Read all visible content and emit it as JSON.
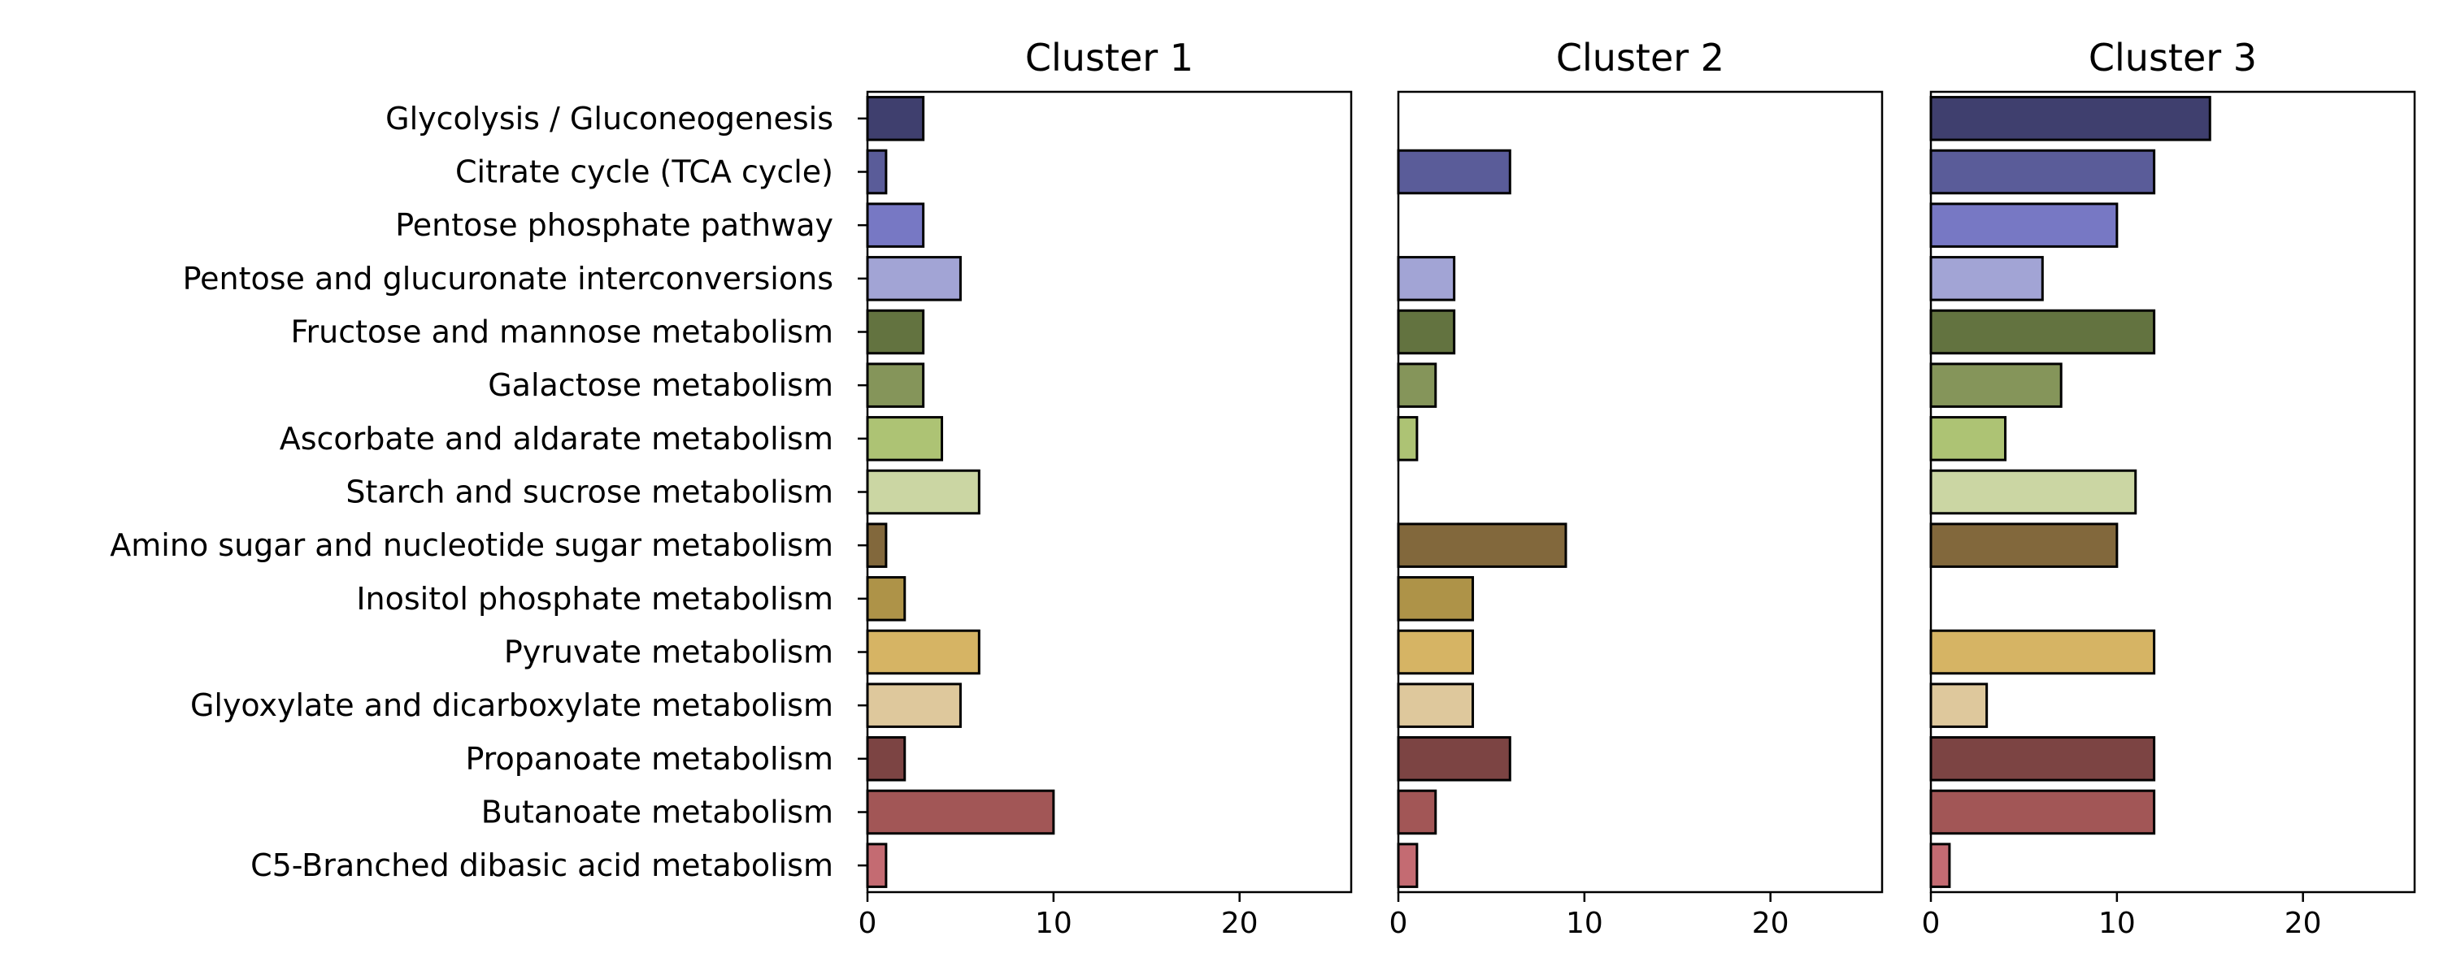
{
  "chart_data": {
    "type": "bar",
    "orientation": "horizontal",
    "categories": [
      "Glycolysis / Gluconeogenesis",
      "Citrate cycle (TCA cycle)",
      "Pentose phosphate pathway",
      "Pentose and glucuronate interconversions",
      "Fructose and mannose metabolism",
      "Galactose metabolism",
      "Ascorbate and aldarate metabolism",
      "Starch and sucrose metabolism",
      "Amino sugar and nucleotide sugar metabolism",
      "Inositol phosphate metabolism",
      "Pyruvate metabolism",
      "Glyoxylate and dicarboxylate metabolism",
      "Propanoate metabolism",
      "Butanoate metabolism",
      "C5-Branched dibasic acid metabolism"
    ],
    "colors": [
      "#3f3f6e",
      "#5a5c99",
      "#7778c4",
      "#a2a4d5",
      "#637340",
      "#85955a",
      "#adc374",
      "#cbd6a3",
      "#82683c",
      "#ae9348",
      "#d6b464",
      "#dec89c",
      "#7c4443",
      "#a25656",
      "#c46b72"
    ],
    "xlim": [
      0,
      26
    ],
    "xticks": [
      0,
      10,
      20
    ],
    "grid": false,
    "panels": [
      {
        "title": "Cluster 1",
        "values": [
          3,
          1,
          3,
          5,
          3,
          3,
          4,
          6,
          1,
          2,
          6,
          5,
          2,
          10,
          1
        ]
      },
      {
        "title": "Cluster 2",
        "values": [
          0,
          6,
          0,
          3,
          3,
          2,
          1,
          0,
          9,
          4,
          4,
          4,
          6,
          2,
          1
        ]
      },
      {
        "title": "Cluster 3",
        "values": [
          15,
          12,
          10,
          6,
          12,
          7,
          4,
          11,
          10,
          0,
          12,
          3,
          12,
          12,
          1
        ]
      }
    ]
  }
}
